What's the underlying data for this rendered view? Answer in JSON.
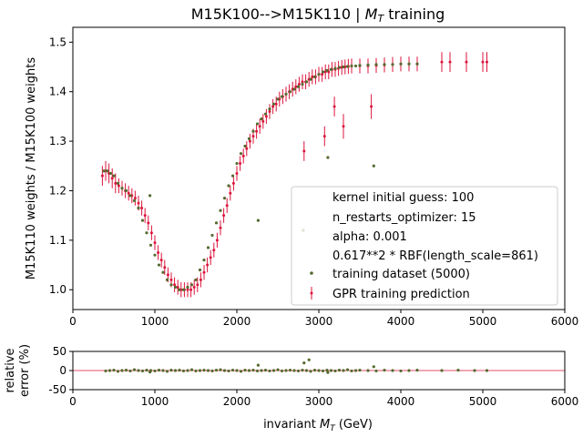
{
  "chart_data": [
    {
      "type": "scatter",
      "title": "M15K100-->M15K110 | ",
      "title_math": "M",
      "title_math_sub": "T",
      "title_suffix": " training",
      "ylabel": "M15K110 weights / M15K100 weights",
      "xlim": [
        0,
        6000
      ],
      "ylim": [
        0.96,
        1.53
      ],
      "xticks": [
        0,
        1000,
        2000,
        3000,
        4000,
        5000,
        6000
      ],
      "yticks": [
        1.0,
        1.1,
        1.2,
        1.3,
        1.4,
        1.5
      ],
      "ytick_labels": [
        "1.0",
        "1.1",
        "1.2",
        "1.3",
        "1.4",
        "1.5"
      ],
      "grid": false,
      "legend_position": "lower-right",
      "legend": {
        "text_entries": [
          "kernel initial guess: 100",
          "n_restarts_optimizer: 15",
          "alpha: 0.001",
          "0.617**2 * RBF(length_scale=861)"
        ],
        "training_label": "training dataset (5000)",
        "prediction_label": "GPR training prediction"
      },
      "colors": {
        "training": "#556b2f",
        "prediction": "#dc143c"
      },
      "series": [
        {
          "name": "training dataset (5000)",
          "x": [
            380,
            420,
            460,
            500,
            550,
            600,
            650,
            700,
            750,
            800,
            850,
            900,
            950,
            1000,
            1050,
            1100,
            1150,
            1200,
            1250,
            1300,
            1350,
            1400,
            1450,
            1500,
            1550,
            1600,
            1650,
            1700,
            1750,
            1800,
            1850,
            1900,
            1950,
            2000,
            2050,
            2100,
            2150,
            2200,
            2250,
            2300,
            2350,
            2400,
            2450,
            2500,
            2550,
            2600,
            2650,
            2700,
            2750,
            2800,
            2850,
            2900,
            2950,
            3000,
            3050,
            3100,
            3150,
            3200,
            3250,
            3300,
            3350,
            3400,
            3450,
            3500,
            3600,
            3700,
            3800,
            3900,
            4000,
            4100,
            4200,
            940,
            2260,
            3110,
            3670,
            2810
          ],
          "y": [
            1.24,
            1.24,
            1.235,
            1.23,
            1.215,
            1.205,
            1.2,
            1.19,
            1.18,
            1.165,
            1.14,
            1.115,
            1.09,
            1.07,
            1.05,
            1.035,
            1.02,
            1.01,
            1.005,
            1.0,
            1.0,
            1.005,
            1.01,
            1.02,
            1.04,
            1.06,
            1.085,
            1.11,
            1.135,
            1.16,
            1.185,
            1.21,
            1.23,
            1.255,
            1.275,
            1.29,
            1.305,
            1.32,
            1.335,
            1.345,
            1.355,
            1.365,
            1.375,
            1.385,
            1.39,
            1.395,
            1.4,
            1.405,
            1.41,
            1.415,
            1.42,
            1.425,
            1.43,
            1.435,
            1.44,
            1.443,
            1.445,
            1.447,
            1.449,
            1.45,
            1.451,
            1.452,
            1.452,
            1.453,
            1.454,
            1.455,
            1.455,
            1.455,
            1.456,
            1.456,
            1.456,
            1.19,
            1.14,
            1.267,
            1.25,
            1.12
          ]
        },
        {
          "name": "GPR training prediction",
          "x": [
            360,
            400,
            440,
            480,
            520,
            560,
            600,
            640,
            680,
            720,
            760,
            800,
            840,
            880,
            920,
            960,
            1000,
            1040,
            1080,
            1120,
            1160,
            1200,
            1240,
            1280,
            1320,
            1360,
            1400,
            1440,
            1480,
            1520,
            1560,
            1600,
            1640,
            1680,
            1720,
            1760,
            1800,
            1840,
            1880,
            1920,
            1960,
            2000,
            2040,
            2080,
            2120,
            2160,
            2200,
            2240,
            2280,
            2320,
            2360,
            2400,
            2440,
            2480,
            2520,
            2560,
            2600,
            2640,
            2680,
            2720,
            2760,
            2800,
            2840,
            2880,
            2920,
            2960,
            3000,
            3040,
            3080,
            3120,
            3160,
            3200,
            3240,
            3280,
            3320,
            3360,
            3400,
            3500,
            3600,
            3700,
            3800,
            3900,
            4000,
            4100,
            4200,
            4500,
            4600,
            4800,
            5000,
            5050,
            3640,
            3300,
            3190,
            3070,
            2820
          ],
          "y": [
            1.23,
            1.24,
            1.235,
            1.225,
            1.215,
            1.21,
            1.205,
            1.2,
            1.195,
            1.19,
            1.185,
            1.175,
            1.165,
            1.15,
            1.135,
            1.115,
            1.095,
            1.075,
            1.06,
            1.045,
            1.03,
            1.02,
            1.01,
            1.005,
            1.0,
            1.0,
            1.0,
            1.0,
            1.005,
            1.01,
            1.02,
            1.035,
            1.05,
            1.065,
            1.08,
            1.1,
            1.125,
            1.15,
            1.17,
            1.195,
            1.215,
            1.235,
            1.255,
            1.27,
            1.285,
            1.3,
            1.31,
            1.32,
            1.33,
            1.34,
            1.35,
            1.36,
            1.37,
            1.375,
            1.385,
            1.39,
            1.395,
            1.4,
            1.405,
            1.41,
            1.415,
            1.42,
            1.42,
            1.425,
            1.43,
            1.43,
            1.435,
            1.435,
            1.44,
            1.44,
            1.445,
            1.445,
            1.447,
            1.449,
            1.45,
            1.451,
            1.452,
            1.452,
            1.452,
            1.453,
            1.454,
            1.455,
            1.456,
            1.456,
            1.456,
            1.46,
            1.46,
            1.46,
            1.46,
            1.46,
            1.37,
            1.33,
            1.37,
            1.31,
            1.28
          ],
          "yerr": [
            0.02,
            0.02,
            0.02,
            0.02,
            0.02,
            0.015,
            0.015,
            0.015,
            0.015,
            0.015,
            0.015,
            0.015,
            0.015,
            0.015,
            0.015,
            0.015,
            0.015,
            0.015,
            0.015,
            0.015,
            0.015,
            0.015,
            0.015,
            0.015,
            0.015,
            0.015,
            0.015,
            0.015,
            0.015,
            0.015,
            0.015,
            0.015,
            0.015,
            0.015,
            0.015,
            0.015,
            0.015,
            0.015,
            0.015,
            0.015,
            0.015,
            0.015,
            0.015,
            0.015,
            0.015,
            0.015,
            0.015,
            0.015,
            0.015,
            0.015,
            0.015,
            0.015,
            0.015,
            0.015,
            0.015,
            0.015,
            0.015,
            0.015,
            0.015,
            0.015,
            0.015,
            0.015,
            0.015,
            0.015,
            0.015,
            0.015,
            0.015,
            0.015,
            0.015,
            0.015,
            0.015,
            0.015,
            0.015,
            0.015,
            0.015,
            0.015,
            0.015,
            0.015,
            0.015,
            0.015,
            0.015,
            0.015,
            0.015,
            0.015,
            0.015,
            0.02,
            0.02,
            0.02,
            0.02,
            0.02,
            0.025,
            0.025,
            0.02,
            0.02,
            0.02
          ]
        }
      ]
    },
    {
      "type": "scatter",
      "xlabel": "invariant ",
      "xlabel_math": "M",
      "xlabel_math_sub": "T",
      "xlabel_suffix": " (GeV)",
      "ylabel_lines": [
        "relative",
        "error (%)"
      ],
      "xlim": [
        0,
        6000
      ],
      "ylim": [
        -50,
        50
      ],
      "xticks": [
        0,
        1000,
        2000,
        3000,
        4000,
        5000,
        6000
      ],
      "yticks": [
        -50,
        0,
        50
      ],
      "reference_line": 0,
      "colors": {
        "points": "#556b2f",
        "reference": "#dc143c"
      },
      "series": [
        {
          "name": "relative error",
          "x": [
            400,
            450,
            500,
            550,
            600,
            650,
            700,
            750,
            800,
            850,
            900,
            950,
            1000,
            1050,
            1100,
            1150,
            1200,
            1250,
            1300,
            1350,
            1400,
            1450,
            1500,
            1550,
            1600,
            1650,
            1700,
            1750,
            1800,
            1850,
            1900,
            1950,
            2000,
            2050,
            2100,
            2150,
            2200,
            2250,
            2300,
            2350,
            2400,
            2450,
            2500,
            2550,
            2600,
            2650,
            2700,
            2750,
            2800,
            2850,
            2900,
            2950,
            3000,
            3050,
            3100,
            3150,
            3200,
            3250,
            3300,
            3350,
            3400,
            3450,
            3500,
            3600,
            3700,
            3800,
            3900,
            4000,
            4100,
            4200,
            4500,
            4700,
            4900,
            5050,
            2260,
            2820,
            2880,
            3670,
            3110,
            940
          ],
          "y": [
            -1,
            0,
            1,
            -2,
            0,
            1,
            -1,
            2,
            0,
            -1,
            1,
            0,
            -1,
            1,
            0,
            -2,
            1,
            0,
            1,
            -1,
            0,
            2,
            -1,
            0,
            1,
            0,
            -1,
            1,
            2,
            0,
            -1,
            1,
            0,
            -2,
            1,
            0,
            1,
            -1,
            0,
            1,
            -1,
            0,
            2,
            -1,
            0,
            1,
            0,
            -1,
            1,
            0,
            -2,
            1,
            0,
            -1,
            1,
            0,
            -1,
            1,
            0,
            2,
            -1,
            0,
            1,
            0,
            -1,
            1,
            0,
            -1,
            0,
            1,
            0,
            1,
            0,
            0,
            14,
            20,
            28,
            10,
            -5,
            -4
          ]
        }
      ]
    }
  ]
}
